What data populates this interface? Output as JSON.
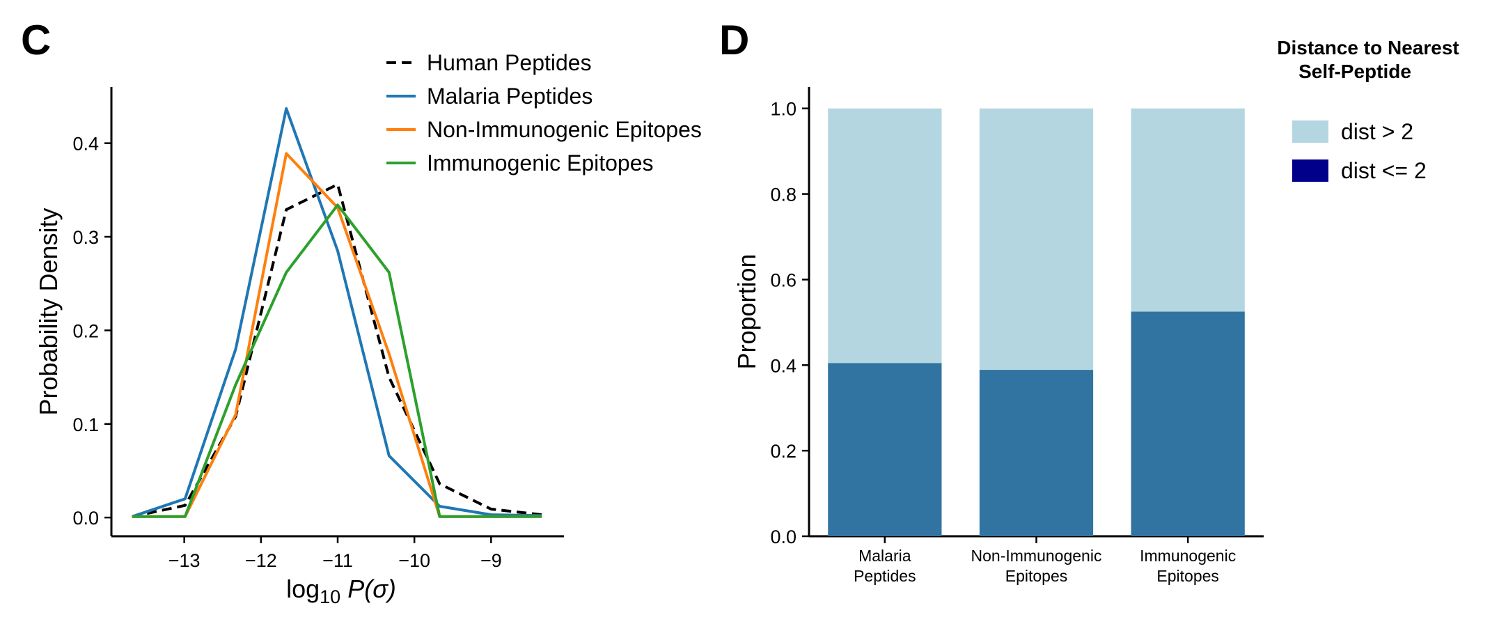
{
  "panel_c_label": "C",
  "panel_d_label": "D",
  "chart_data": [
    {
      "type": "line",
      "xlabel": "log",
      "xlabel_sub": "10",
      "xlabel_tail": " P(σ)",
      "ylabel": "Probability Density",
      "xlim": [
        -13.95,
        -8.05
      ],
      "ylim": [
        -0.02,
        0.46
      ],
      "xticks": [
        -13,
        -12,
        -11,
        -10,
        -9
      ],
      "xtick_labels": [
        "−13",
        "−12",
        "−11",
        "−10",
        "−9"
      ],
      "yticks": [
        0.0,
        0.1,
        0.2,
        0.3,
        0.4
      ],
      "ytick_labels": [
        "0.0",
        "0.1",
        "0.2",
        "0.3",
        "0.4"
      ],
      "grid": false,
      "legend_position": "top-right",
      "series": [
        {
          "name": "Human Peptides",
          "color": "#000000",
          "dashed": true,
          "x": [
            -13.68,
            -12.99,
            -12.33,
            -11.67,
            -11.0,
            -10.33,
            -9.67,
            -9.0,
            -8.34
          ],
          "y": [
            0.001,
            0.013,
            0.108,
            0.329,
            0.356,
            0.15,
            0.036,
            0.009,
            0.003
          ]
        },
        {
          "name": "Malaria Peptides",
          "color": "#1f77b4",
          "dashed": false,
          "x": [
            -13.68,
            -12.99,
            -12.33,
            -11.67,
            -11.0,
            -10.33,
            -9.67,
            -9.0,
            -8.34
          ],
          "y": [
            0.001,
            0.02,
            0.18,
            0.437,
            0.285,
            0.066,
            0.012,
            0.003,
            0.002
          ]
        },
        {
          "name": "Non-Immunogenic Epitopes",
          "color": "#ff7f0e",
          "dashed": false,
          "x": [
            -13.68,
            -12.99,
            -12.33,
            -11.67,
            -11.0,
            -10.33,
            -9.67,
            -9.0,
            -8.34
          ],
          "y": [
            0.001,
            0.001,
            0.11,
            0.389,
            0.331,
            0.175,
            0.001,
            0.001,
            0.001
          ]
        },
        {
          "name": "Immunogenic Epitopes",
          "color": "#2ca02c",
          "dashed": false,
          "x": [
            -13.68,
            -12.99,
            -12.33,
            -11.67,
            -11.0,
            -10.33,
            -9.67,
            -9.0,
            -8.34
          ],
          "y": [
            0.001,
            0.001,
            0.142,
            0.262,
            0.334,
            0.262,
            0.001,
            0.001,
            0.001
          ]
        }
      ]
    },
    {
      "type": "bar",
      "stacked": true,
      "ylabel": "Proportion",
      "ylim": [
        0.0,
        1.05
      ],
      "yticks": [
        0.0,
        0.2,
        0.4,
        0.6,
        0.8,
        1.0
      ],
      "ytick_labels": [
        "0.0",
        "0.2",
        "0.4",
        "0.6",
        "0.8",
        "1.0"
      ],
      "grid": false,
      "categories": [
        [
          "Malaria",
          "Peptides"
        ],
        [
          "Non-Immunogenic",
          "Epitopes"
        ],
        [
          "Immunogenic",
          "Epitopes"
        ]
      ],
      "legend_title": [
        "Distance to Nearest",
        "Self-Peptide"
      ],
      "legend_position": "right",
      "legend": [
        {
          "name": "dist > 2",
          "color": "#b4d6e0"
        },
        {
          "name": "dist <= 2",
          "color": "#00008b"
        }
      ],
      "series": [
        {
          "name": "dist <= 2",
          "color": "#3274a1",
          "values": [
            0.405,
            0.389,
            0.525
          ]
        },
        {
          "name": "dist > 2",
          "color": "#b4d6e0",
          "values": [
            0.595,
            0.611,
            0.475
          ]
        }
      ]
    }
  ]
}
